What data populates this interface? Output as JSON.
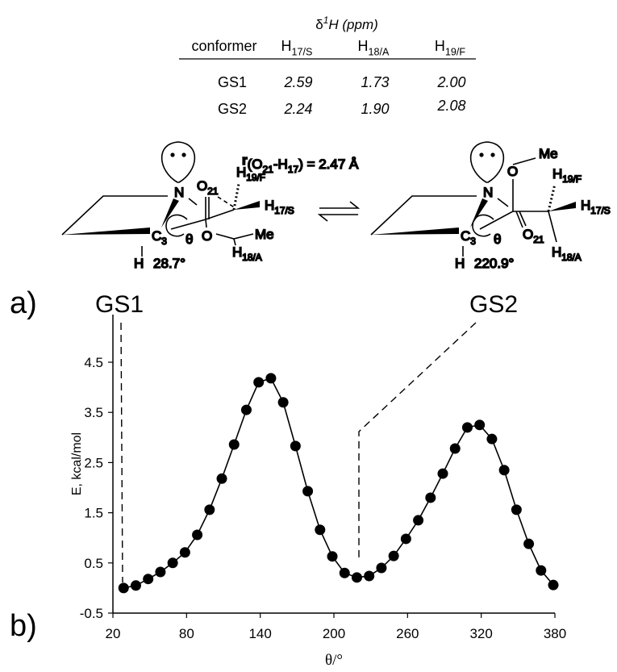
{
  "panel_labels": [
    "a)",
    "b)"
  ],
  "table": {
    "title": [
      "δ",
      "1",
      "H (ppm)"
    ],
    "header": [
      {
        "base": "conformer"
      },
      {
        "base": "H",
        "sub": "17/S"
      },
      {
        "base": "H",
        "sub": "18/A"
      },
      {
        "base": "H",
        "sub": "19/F"
      }
    ],
    "rows": [
      [
        "GS1",
        "2.59",
        "1.73",
        "2.00"
      ],
      [
        "GS2",
        "2.24",
        "1.90",
        "2.08"
      ]
    ]
  },
  "structures": {
    "distance_label": [
      "r",
      "(O",
      "21",
      "-H",
      "17",
      ") = 2.47 Å"
    ],
    "left": [
      {
        "base": "N"
      },
      {
        "base": "O",
        "sub": "21"
      },
      {
        "base": "H",
        "sub": "19/F"
      },
      {
        "base": "H",
        "sub": "17/S"
      },
      {
        "base": "C",
        "sub": "3"
      },
      {
        "base": "θ"
      },
      {
        "base": "O"
      },
      {
        "base": "Me"
      },
      {
        "base": "H",
        "sub": "18/A"
      },
      {
        "base": "H"
      },
      {
        "base": "28.7°"
      }
    ],
    "right": [
      {
        "base": "N"
      },
      {
        "base": "O"
      },
      {
        "base": "Me"
      },
      {
        "base": "H",
        "sub": "19/F"
      },
      {
        "base": "H",
        "sub": "17/S"
      },
      {
        "base": "C",
        "sub": "3"
      },
      {
        "base": "θ"
      },
      {
        "base": "O",
        "sub": "21"
      },
      {
        "base": "H",
        "sub": "18/A"
      },
      {
        "base": "H"
      },
      {
        "base": "220.9°"
      }
    ]
  },
  "chart_data": {
    "type": "line",
    "x_label": "θ/°",
    "y_label": "E, kcal/mol",
    "annotations": [
      "GS1",
      "GS2"
    ],
    "x": [
      28.7,
      38.7,
      48.7,
      58.7,
      68.7,
      78.7,
      88.7,
      98.7,
      108.7,
      118.7,
      128.7,
      138.7,
      148.7,
      158.7,
      168.7,
      178.7,
      188.7,
      198.7,
      208.7,
      218.7,
      228.7,
      238.7,
      248.7,
      258.7,
      268.7,
      278.7,
      288.7,
      298.7,
      308.7,
      318.7,
      328.7,
      338.7,
      348.7,
      358.7,
      368.7,
      378.7
    ],
    "series": [
      {
        "color": "#000000",
        "values": [
          0.0,
          0.05,
          0.18,
          0.32,
          0.5,
          0.71,
          1.06,
          1.56,
          2.18,
          2.86,
          3.55,
          4.1,
          4.18,
          3.7,
          2.83,
          1.93,
          1.16,
          0.63,
          0.3,
          0.21,
          0.24,
          0.4,
          0.64,
          0.98,
          1.35,
          1.8,
          2.28,
          2.78,
          3.2,
          3.25,
          2.97,
          2.35,
          1.56,
          0.88,
          0.35,
          0.06
        ]
      }
    ],
    "xlim": [
      20,
      380
    ],
    "xticks": [
      20,
      80,
      140,
      200,
      260,
      320,
      380
    ],
    "ylim": [
      -0.5,
      5.4
    ],
    "yticks": [
      -0.5,
      0.5,
      1.5,
      2.5,
      3.5,
      4.5
    ]
  }
}
